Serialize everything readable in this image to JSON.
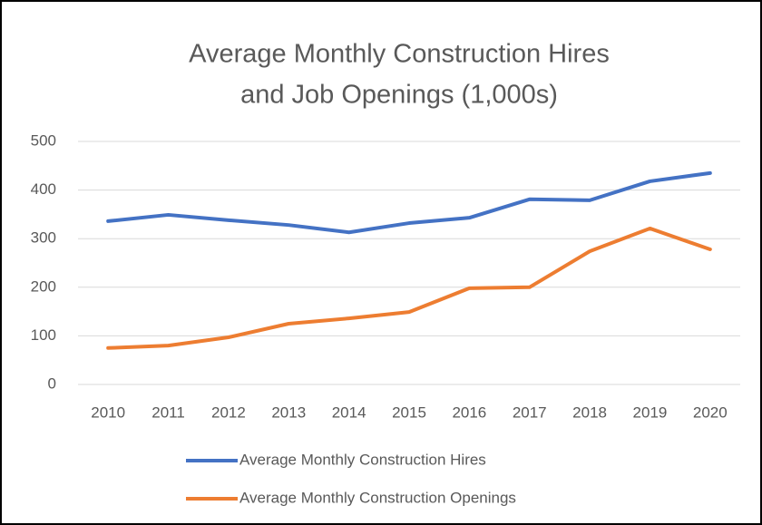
{
  "chart_data": {
    "type": "line",
    "title": [
      "Average Monthly Construction Hires",
      "and Job Openings (1,000s)"
    ],
    "categories": [
      "2010",
      "2011",
      "2012",
      "2013",
      "2014",
      "2015",
      "2016",
      "2017",
      "2018",
      "2019",
      "2020"
    ],
    "series": [
      {
        "name": "Average Monthly Construction Hires",
        "color": "#4472c4",
        "values": [
          336,
          349,
          338,
          328,
          313,
          332,
          343,
          381,
          379,
          418,
          435
        ]
      },
      {
        "name": "Average Monthly Construction Openings",
        "color": "#ed7d31",
        "values": [
          75,
          80,
          97,
          125,
          136,
          149,
          198,
          200,
          274,
          321,
          278
        ]
      }
    ],
    "ylim": [
      0,
      500
    ],
    "yticks": [
      0,
      100,
      200,
      300,
      400,
      500
    ],
    "grid": true,
    "legend": "bottom"
  }
}
